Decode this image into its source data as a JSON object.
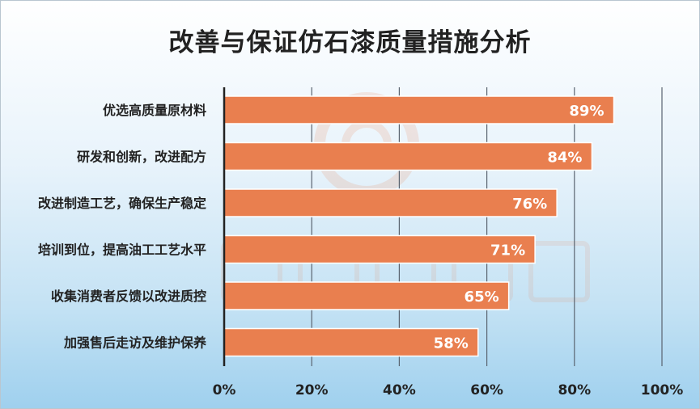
{
  "chart_data": {
    "type": "bar",
    "orientation": "horizontal",
    "title": "改善与保证仿石漆质量措施分析",
    "categories": [
      "优选高质量原材料",
      "研发和创新，改进配方",
      "改进制造工艺，确保生产稳定",
      "培训到位，提高油工工艺水平",
      "收集消费者反馈以改进质控",
      "加强售后走访及维护保养"
    ],
    "values": [
      89,
      84,
      76,
      71,
      65,
      58
    ],
    "data_labels": [
      "89%",
      "84%",
      "76%",
      "71%",
      "65%",
      "58%"
    ],
    "xlim": [
      0,
      100
    ],
    "x_ticks": [
      0,
      20,
      40,
      60,
      80,
      100
    ],
    "x_tick_labels": [
      "0%",
      "20%",
      "40%",
      "60%",
      "80%",
      "100%"
    ],
    "grid": "vertical",
    "legend": "none",
    "colors": {
      "bar": "#e97f4f",
      "bar_border": "#ffffff",
      "grid": "#5a6470",
      "axis": "#222222",
      "text": "#222222",
      "label": "#ffffff"
    },
    "watermark": "中外涂料网"
  }
}
